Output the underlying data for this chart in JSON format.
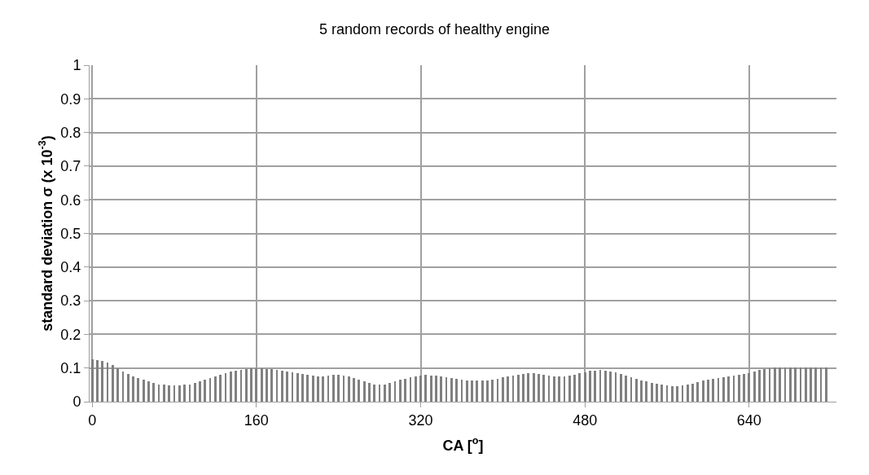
{
  "chart_data": {
    "type": "bar",
    "title": "5 random records of healthy engine",
    "xlabel": "CA [$^{o}$]",
    "ylabel": "standard deviation σ (x 10$^{-3}$)",
    "x": [
      0,
      5,
      10,
      15,
      20,
      25,
      30,
      35,
      40,
      45,
      50,
      55,
      60,
      65,
      70,
      75,
      80,
      85,
      90,
      95,
      100,
      105,
      110,
      115,
      120,
      125,
      130,
      135,
      140,
      145,
      150,
      155,
      160,
      165,
      170,
      175,
      180,
      185,
      190,
      195,
      200,
      205,
      210,
      215,
      220,
      225,
      230,
      235,
      240,
      245,
      250,
      255,
      260,
      265,
      270,
      275,
      280,
      285,
      290,
      295,
      300,
      305,
      310,
      315,
      320,
      325,
      330,
      335,
      340,
      345,
      350,
      355,
      360,
      365,
      370,
      375,
      380,
      385,
      390,
      395,
      400,
      405,
      410,
      415,
      420,
      425,
      430,
      435,
      440,
      445,
      450,
      455,
      460,
      465,
      470,
      475,
      480,
      485,
      490,
      495,
      500,
      505,
      510,
      515,
      520,
      525,
      530,
      535,
      540,
      545,
      550,
      555,
      560,
      565,
      570,
      575,
      580,
      585,
      590,
      595,
      600,
      605,
      610,
      615,
      620,
      625,
      630,
      635,
      640,
      645,
      650,
      655,
      660,
      665,
      670,
      675,
      680,
      685,
      690,
      695,
      700,
      705,
      710,
      715
    ],
    "values": [
      0.125,
      0.123,
      0.12,
      0.116,
      0.11,
      0.1,
      0.09,
      0.082,
      0.075,
      0.07,
      0.065,
      0.06,
      0.055,
      0.052,
      0.05,
      0.049,
      0.048,
      0.049,
      0.05,
      0.052,
      0.055,
      0.06,
      0.065,
      0.07,
      0.075,
      0.08,
      0.085,
      0.089,
      0.092,
      0.095,
      0.097,
      0.099,
      0.1,
      0.099,
      0.098,
      0.097,
      0.095,
      0.093,
      0.09,
      0.088,
      0.085,
      0.083,
      0.08,
      0.077,
      0.075,
      0.076,
      0.078,
      0.08,
      0.08,
      0.078,
      0.075,
      0.07,
      0.065,
      0.06,
      0.055,
      0.052,
      0.05,
      0.052,
      0.055,
      0.06,
      0.065,
      0.069,
      0.072,
      0.075,
      0.078,
      0.079,
      0.078,
      0.077,
      0.075,
      0.073,
      0.07,
      0.068,
      0.065,
      0.064,
      0.063,
      0.063,
      0.063,
      0.064,
      0.065,
      0.068,
      0.072,
      0.075,
      0.078,
      0.081,
      0.083,
      0.085,
      0.085,
      0.083,
      0.08,
      0.077,
      0.075,
      0.074,
      0.075,
      0.077,
      0.08,
      0.084,
      0.088,
      0.091,
      0.093,
      0.094,
      0.093,
      0.09,
      0.086,
      0.082,
      0.078,
      0.073,
      0.068,
      0.064,
      0.06,
      0.056,
      0.053,
      0.05,
      0.048,
      0.047,
      0.047,
      0.048,
      0.05,
      0.054,
      0.058,
      0.062,
      0.065,
      0.068,
      0.07,
      0.072,
      0.075,
      0.078,
      0.08,
      0.083,
      0.085,
      0.09,
      0.095,
      0.098,
      0.1,
      0.101,
      0.102,
      0.102,
      0.102,
      0.102,
      0.102,
      0.102,
      0.102,
      0.102,
      0.102,
      0.102
    ],
    "color": "#808080",
    "xlim": [
      -2.5,
      725
    ],
    "xticks": [
      0,
      160,
      320,
      480,
      640
    ],
    "ylim": [
      0,
      1
    ],
    "yticks": [
      0,
      0.1,
      0.2,
      0.3,
      0.4,
      0.5,
      0.6,
      0.7,
      0.8,
      0.9,
      1
    ],
    "grid": true
  }
}
